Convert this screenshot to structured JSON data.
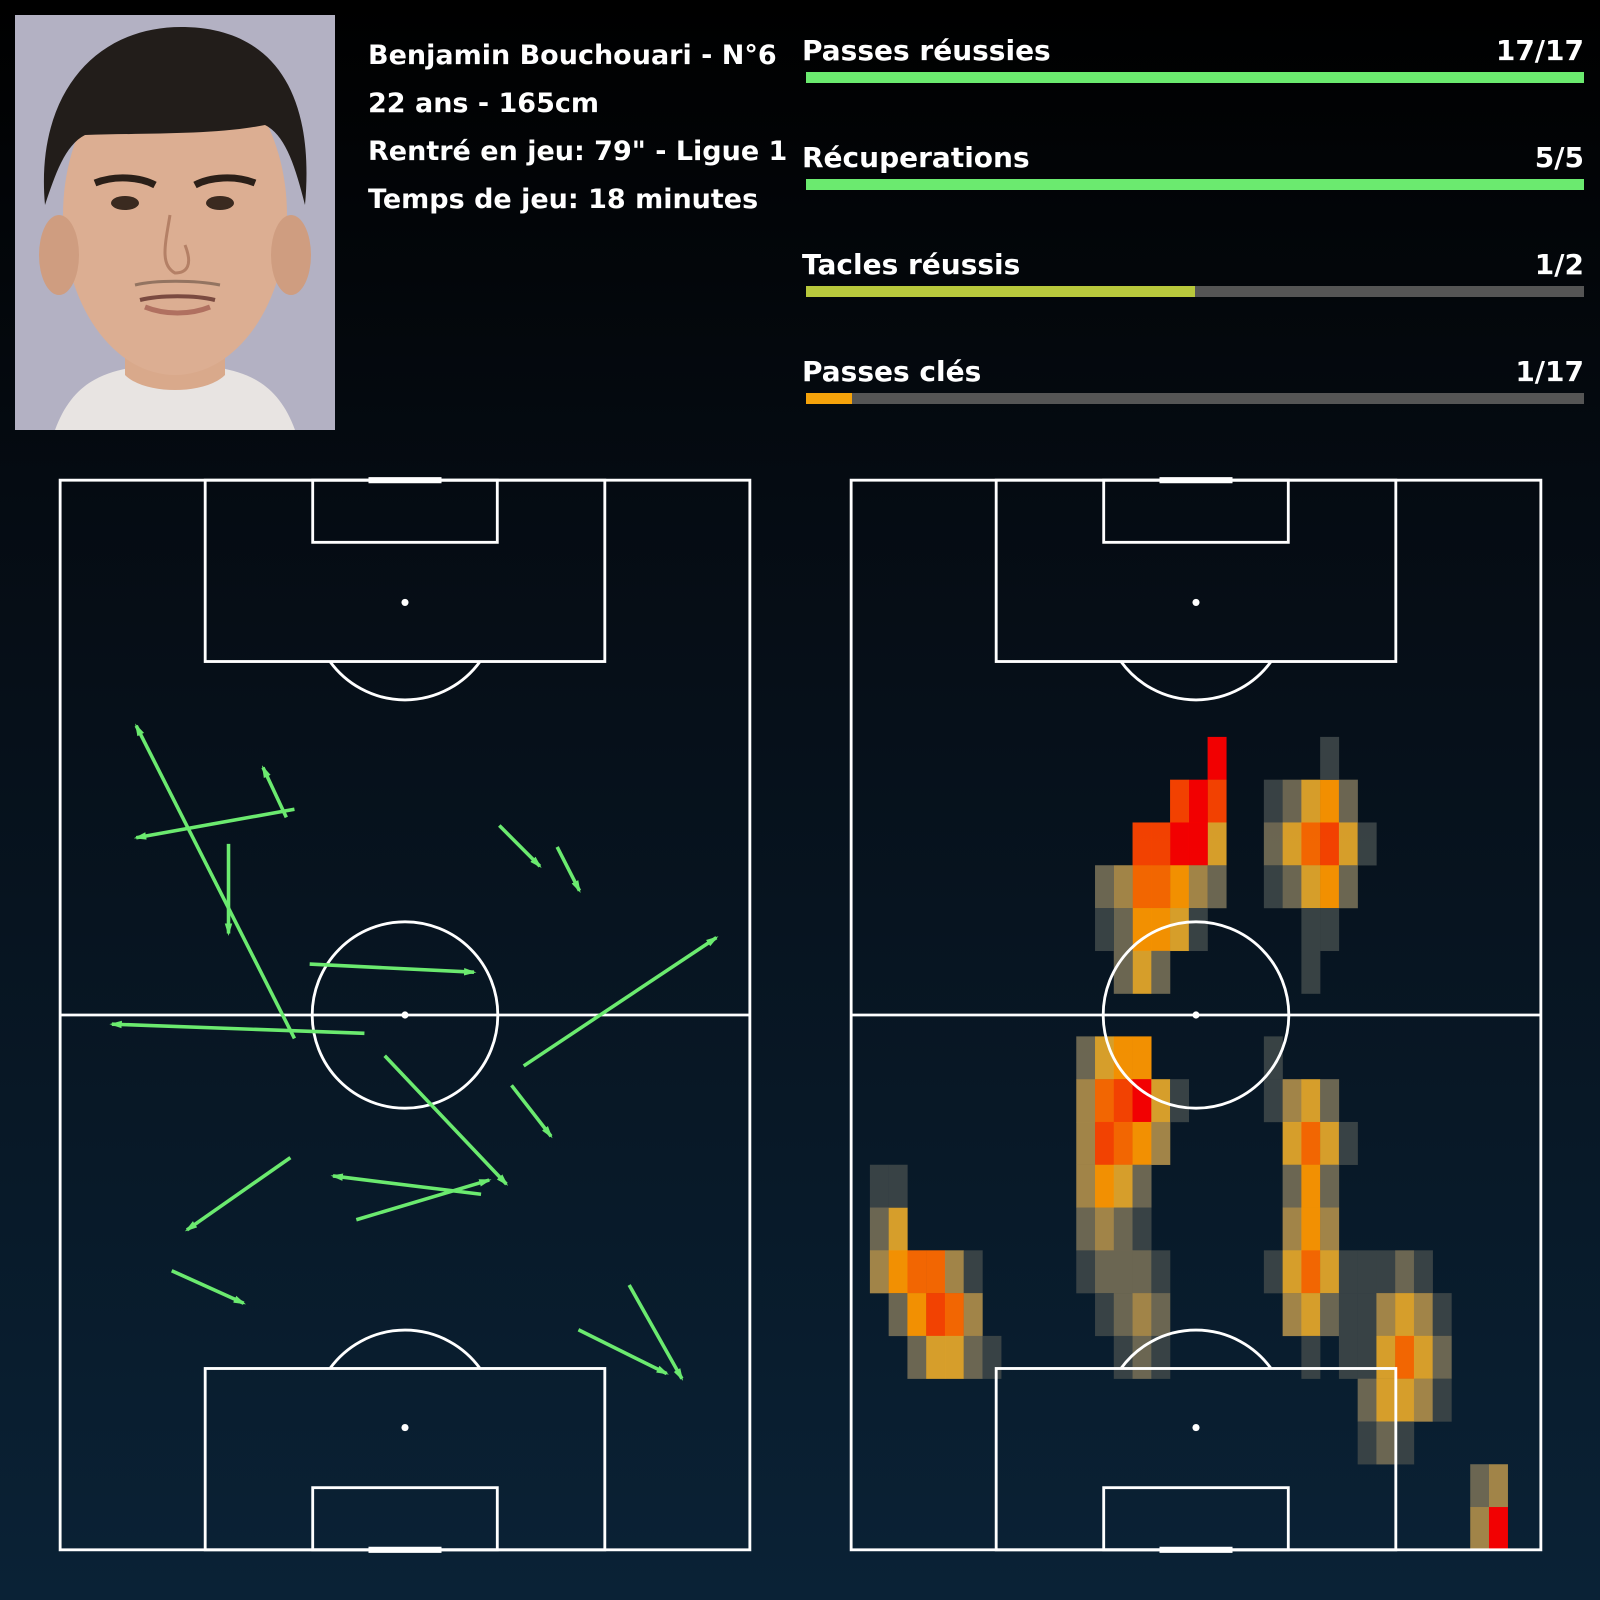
{
  "player": {
    "name_line": "Benjamin Bouchouari - N°6",
    "age_height": "22 ans - 165cm",
    "entry": "Rentré en jeu: 79\" - Ligue 1",
    "playtime": "Temps de jeu: 18 minutes"
  },
  "stats": [
    {
      "label": "Passes réussies",
      "value": "17/17",
      "ratio": 1.0,
      "color": "#6bea6f"
    },
    {
      "label": "Récuperations",
      "value": "5/5",
      "ratio": 1.0,
      "color": "#6bea6f"
    },
    {
      "label": "Tacles réussis",
      "value": "1/2",
      "ratio": 0.5,
      "color": "#b8c83c"
    },
    {
      "label": "Passes clés",
      "value": "1/17",
      "ratio": 0.0588,
      "color": "#f5a20a"
    }
  ],
  "colors": {
    "pass_arrow": "#6bea6f",
    "pitch_lines": "#ffffff",
    "heat_scale": [
      "#3b4447",
      "#716a54",
      "#aa8a4a",
      "#e2a52b",
      "#ff9700",
      "#ff6a00",
      "#ff4500",
      "#ff0000"
    ]
  },
  "pitch_pass_map": {
    "note_units": "pitch coordinates: x 0-68 width, y 0-105 length, y=0 at bottom goal",
    "passes": [
      {
        "x1": 23.1,
        "y1": 72.7,
        "x2": 7.5,
        "y2": 69.9
      },
      {
        "x1": 16.6,
        "y1": 69.3,
        "x2": 16.6,
        "y2": 60.5
      },
      {
        "x1": 23.1,
        "y1": 50.2,
        "x2": 7.5,
        "y2": 80.9
      },
      {
        "x1": 22.3,
        "y1": 71.9,
        "x2": 20.0,
        "y2": 76.8
      },
      {
        "x1": 43.3,
        "y1": 71.1,
        "x2": 47.3,
        "y2": 67.1
      },
      {
        "x1": 49.0,
        "y1": 69.0,
        "x2": 51.2,
        "y2": 64.7
      },
      {
        "x1": 24.6,
        "y1": 57.5,
        "x2": 40.8,
        "y2": 56.7
      },
      {
        "x1": 30.0,
        "y1": 50.7,
        "x2": 5.1,
        "y2": 51.6
      },
      {
        "x1": 45.7,
        "y1": 47.5,
        "x2": 64.7,
        "y2": 60.1
      },
      {
        "x1": 32.0,
        "y1": 48.5,
        "x2": 44.0,
        "y2": 35.9
      },
      {
        "x1": 44.5,
        "y1": 45.6,
        "x2": 48.4,
        "y2": 40.6
      },
      {
        "x1": 22.7,
        "y1": 38.5,
        "x2": 12.5,
        "y2": 31.4
      },
      {
        "x1": 41.5,
        "y1": 34.9,
        "x2": 26.9,
        "y2": 36.7
      },
      {
        "x1": 29.2,
        "y1": 32.4,
        "x2": 42.3,
        "y2": 36.3
      },
      {
        "x1": 11.0,
        "y1": 27.4,
        "x2": 18.1,
        "y2": 24.2
      },
      {
        "x1": 56.1,
        "y1": 26.0,
        "x2": 61.3,
        "y2": 16.8
      },
      {
        "x1": 51.1,
        "y1": 21.6,
        "x2": 59.8,
        "y2": 17.3
      }
    ]
  },
  "pitch_heatmap": {
    "note_units": "cells of 2.72 x 4.2 pitch units; col 0 = left touchline, row 0 = top goal line; level 1-8 indexes heat_scale",
    "cells": [
      {
        "c": 19,
        "r": 6,
        "v": 8
      },
      {
        "c": 19,
        "r": 7,
        "v": 7
      },
      {
        "c": 19,
        "r": 8,
        "v": 4
      },
      {
        "c": 18,
        "r": 7,
        "v": 8
      },
      {
        "c": 18,
        "r": 8,
        "v": 8
      },
      {
        "c": 17,
        "r": 7,
        "v": 7
      },
      {
        "c": 17,
        "r": 8,
        "v": 8
      },
      {
        "c": 17,
        "r": 9,
        "v": 5
      },
      {
        "c": 16,
        "r": 8,
        "v": 7
      },
      {
        "c": 16,
        "r": 9,
        "v": 6
      },
      {
        "c": 16,
        "r": 10,
        "v": 5
      },
      {
        "c": 15,
        "r": 8,
        "v": 7
      },
      {
        "c": 15,
        "r": 9,
        "v": 6
      },
      {
        "c": 15,
        "r": 10,
        "v": 5
      },
      {
        "c": 15,
        "r": 11,
        "v": 4
      },
      {
        "c": 14,
        "r": 9,
        "v": 3
      },
      {
        "c": 14,
        "r": 10,
        "v": 2
      },
      {
        "c": 14,
        "r": 11,
        "v": 2
      },
      {
        "c": 13,
        "r": 9,
        "v": 2
      },
      {
        "c": 13,
        "r": 10,
        "v": 1
      },
      {
        "c": 18,
        "r": 9,
        "v": 3
      },
      {
        "c": 17,
        "r": 10,
        "v": 4
      },
      {
        "c": 16,
        "r": 11,
        "v": 2
      },
      {
        "c": 19,
        "r": 9,
        "v": 2
      },
      {
        "c": 18,
        "r": 10,
        "v": 1
      },
      {
        "c": 1,
        "r": 16,
        "v": 1
      },
      {
        "c": 1,
        "r": 17,
        "v": 2
      },
      {
        "c": 2,
        "r": 17,
        "v": 4
      },
      {
        "c": 1,
        "r": 18,
        "v": 3
      },
      {
        "c": 2,
        "r": 18,
        "v": 5
      },
      {
        "c": 3,
        "r": 18,
        "v": 6
      },
      {
        "c": 4,
        "r": 18,
        "v": 6
      },
      {
        "c": 5,
        "r": 18,
        "v": 3
      },
      {
        "c": 6,
        "r": 18,
        "v": 1
      },
      {
        "c": 2,
        "r": 19,
        "v": 2
      },
      {
        "c": 3,
        "r": 19,
        "v": 5
      },
      {
        "c": 4,
        "r": 19,
        "v": 7
      },
      {
        "c": 5,
        "r": 19,
        "v": 6
      },
      {
        "c": 6,
        "r": 19,
        "v": 3
      },
      {
        "c": 3,
        "r": 20,
        "v": 2
      },
      {
        "c": 4,
        "r": 20,
        "v": 4
      },
      {
        "c": 5,
        "r": 20,
        "v": 4
      },
      {
        "c": 6,
        "r": 20,
        "v": 2
      },
      {
        "c": 7,
        "r": 20,
        "v": 1
      },
      {
        "c": 2,
        "r": 16,
        "v": 1
      },
      {
        "c": 12,
        "r": 13,
        "v": 2
      },
      {
        "c": 13,
        "r": 13,
        "v": 4
      },
      {
        "c": 14,
        "r": 13,
        "v": 5
      },
      {
        "c": 15,
        "r": 13,
        "v": 5
      },
      {
        "c": 12,
        "r": 14,
        "v": 3
      },
      {
        "c": 13,
        "r": 14,
        "v": 6
      },
      {
        "c": 14,
        "r": 14,
        "v": 7
      },
      {
        "c": 15,
        "r": 14,
        "v": 8
      },
      {
        "c": 16,
        "r": 14,
        "v": 4
      },
      {
        "c": 12,
        "r": 15,
        "v": 3
      },
      {
        "c": 13,
        "r": 15,
        "v": 7
      },
      {
        "c": 14,
        "r": 15,
        "v": 6
      },
      {
        "c": 15,
        "r": 15,
        "v": 5
      },
      {
        "c": 16,
        "r": 15,
        "v": 3
      },
      {
        "c": 12,
        "r": 16,
        "v": 3
      },
      {
        "c": 13,
        "r": 16,
        "v": 5
      },
      {
        "c": 14,
        "r": 16,
        "v": 4
      },
      {
        "c": 15,
        "r": 16,
        "v": 2
      },
      {
        "c": 12,
        "r": 17,
        "v": 2
      },
      {
        "c": 13,
        "r": 17,
        "v": 3
      },
      {
        "c": 14,
        "r": 17,
        "v": 2
      },
      {
        "c": 15,
        "r": 17,
        "v": 1
      },
      {
        "c": 12,
        "r": 18,
        "v": 1
      },
      {
        "c": 13,
        "r": 18,
        "v": 2
      },
      {
        "c": 14,
        "r": 18,
        "v": 2
      },
      {
        "c": 15,
        "r": 18,
        "v": 2
      },
      {
        "c": 16,
        "r": 18,
        "v": 1
      },
      {
        "c": 13,
        "r": 19,
        "v": 1
      },
      {
        "c": 14,
        "r": 19,
        "v": 2
      },
      {
        "c": 15,
        "r": 19,
        "v": 3
      },
      {
        "c": 16,
        "r": 19,
        "v": 2
      },
      {
        "c": 14,
        "r": 20,
        "v": 1
      },
      {
        "c": 15,
        "r": 20,
        "v": 2
      },
      {
        "c": 16,
        "r": 20,
        "v": 1
      },
      {
        "c": 17,
        "r": 14,
        "v": 1
      },
      {
        "c": 22,
        "r": 7,
        "v": 1
      },
      {
        "c": 23,
        "r": 7,
        "v": 2
      },
      {
        "c": 24,
        "r": 7,
        "v": 4
      },
      {
        "c": 25,
        "r": 7,
        "v": 5
      },
      {
        "c": 26,
        "r": 7,
        "v": 2
      },
      {
        "c": 22,
        "r": 8,
        "v": 2
      },
      {
        "c": 23,
        "r": 8,
        "v": 4
      },
      {
        "c": 24,
        "r": 8,
        "v": 6
      },
      {
        "c": 25,
        "r": 8,
        "v": 7
      },
      {
        "c": 26,
        "r": 8,
        "v": 4
      },
      {
        "c": 27,
        "r": 8,
        "v": 1
      },
      {
        "c": 22,
        "r": 9,
        "v": 1
      },
      {
        "c": 23,
        "r": 9,
        "v": 2
      },
      {
        "c": 24,
        "r": 9,
        "v": 4
      },
      {
        "c": 25,
        "r": 9,
        "v": 5
      },
      {
        "c": 26,
        "r": 9,
        "v": 2
      },
      {
        "c": 25,
        "r": 6,
        "v": 1
      },
      {
        "c": 24,
        "r": 10,
        "v": 1
      },
      {
        "c": 25,
        "r": 10,
        "v": 1
      },
      {
        "c": 24,
        "r": 11,
        "v": 1
      },
      {
        "c": 22,
        "r": 14,
        "v": 1
      },
      {
        "c": 23,
        "r": 14,
        "v": 3
      },
      {
        "c": 24,
        "r": 14,
        "v": 4
      },
      {
        "c": 25,
        "r": 14,
        "v": 2
      },
      {
        "c": 23,
        "r": 15,
        "v": 4
      },
      {
        "c": 24,
        "r": 15,
        "v": 6
      },
      {
        "c": 25,
        "r": 15,
        "v": 4
      },
      {
        "c": 26,
        "r": 15,
        "v": 1
      },
      {
        "c": 23,
        "r": 16,
        "v": 2
      },
      {
        "c": 24,
        "r": 16,
        "v": 5
      },
      {
        "c": 25,
        "r": 16,
        "v": 2
      },
      {
        "c": 23,
        "r": 17,
        "v": 3
      },
      {
        "c": 24,
        "r": 17,
        "v": 5
      },
      {
        "c": 25,
        "r": 17,
        "v": 3
      },
      {
        "c": 22,
        "r": 18,
        "v": 1
      },
      {
        "c": 23,
        "r": 18,
        "v": 4
      },
      {
        "c": 24,
        "r": 18,
        "v": 6
      },
      {
        "c": 25,
        "r": 18,
        "v": 4
      },
      {
        "c": 26,
        "r": 18,
        "v": 1
      },
      {
        "c": 23,
        "r": 19,
        "v": 3
      },
      {
        "c": 24,
        "r": 19,
        "v": 4
      },
      {
        "c": 25,
        "r": 19,
        "v": 2
      },
      {
        "c": 24,
        "r": 20,
        "v": 1
      },
      {
        "c": 22,
        "r": 13,
        "v": 1
      },
      {
        "c": 27,
        "r": 18,
        "v": 1
      },
      {
        "c": 28,
        "r": 18,
        "v": 1
      },
      {
        "c": 29,
        "r": 18,
        "v": 2
      },
      {
        "c": 30,
        "r": 18,
        "v": 1
      },
      {
        "c": 27,
        "r": 19,
        "v": 1
      },
      {
        "c": 28,
        "r": 19,
        "v": 3
      },
      {
        "c": 29,
        "r": 19,
        "v": 4
      },
      {
        "c": 30,
        "r": 19,
        "v": 3
      },
      {
        "c": 31,
        "r": 19,
        "v": 1
      },
      {
        "c": 27,
        "r": 20,
        "v": 1
      },
      {
        "c": 28,
        "r": 20,
        "v": 4
      },
      {
        "c": 29,
        "r": 20,
        "v": 6
      },
      {
        "c": 30,
        "r": 20,
        "v": 4
      },
      {
        "c": 31,
        "r": 20,
        "v": 2
      },
      {
        "c": 27,
        "r": 21,
        "v": 2
      },
      {
        "c": 28,
        "r": 21,
        "v": 4
      },
      {
        "c": 29,
        "r": 21,
        "v": 4
      },
      {
        "c": 30,
        "r": 21,
        "v": 3
      },
      {
        "c": 31,
        "r": 21,
        "v": 1
      },
      {
        "c": 27,
        "r": 22,
        "v": 1
      },
      {
        "c": 28,
        "r": 22,
        "v": 2
      },
      {
        "c": 29,
        "r": 22,
        "v": 1
      },
      {
        "c": 26,
        "r": 19,
        "v": 1
      },
      {
        "c": 26,
        "r": 20,
        "v": 1
      },
      {
        "c": 33,
        "r": 23,
        "v": 2
      },
      {
        "c": 34,
        "r": 23,
        "v": 3
      },
      {
        "c": 33,
        "r": 24,
        "v": 3
      },
      {
        "c": 34,
        "r": 24,
        "v": 8
      }
    ]
  }
}
